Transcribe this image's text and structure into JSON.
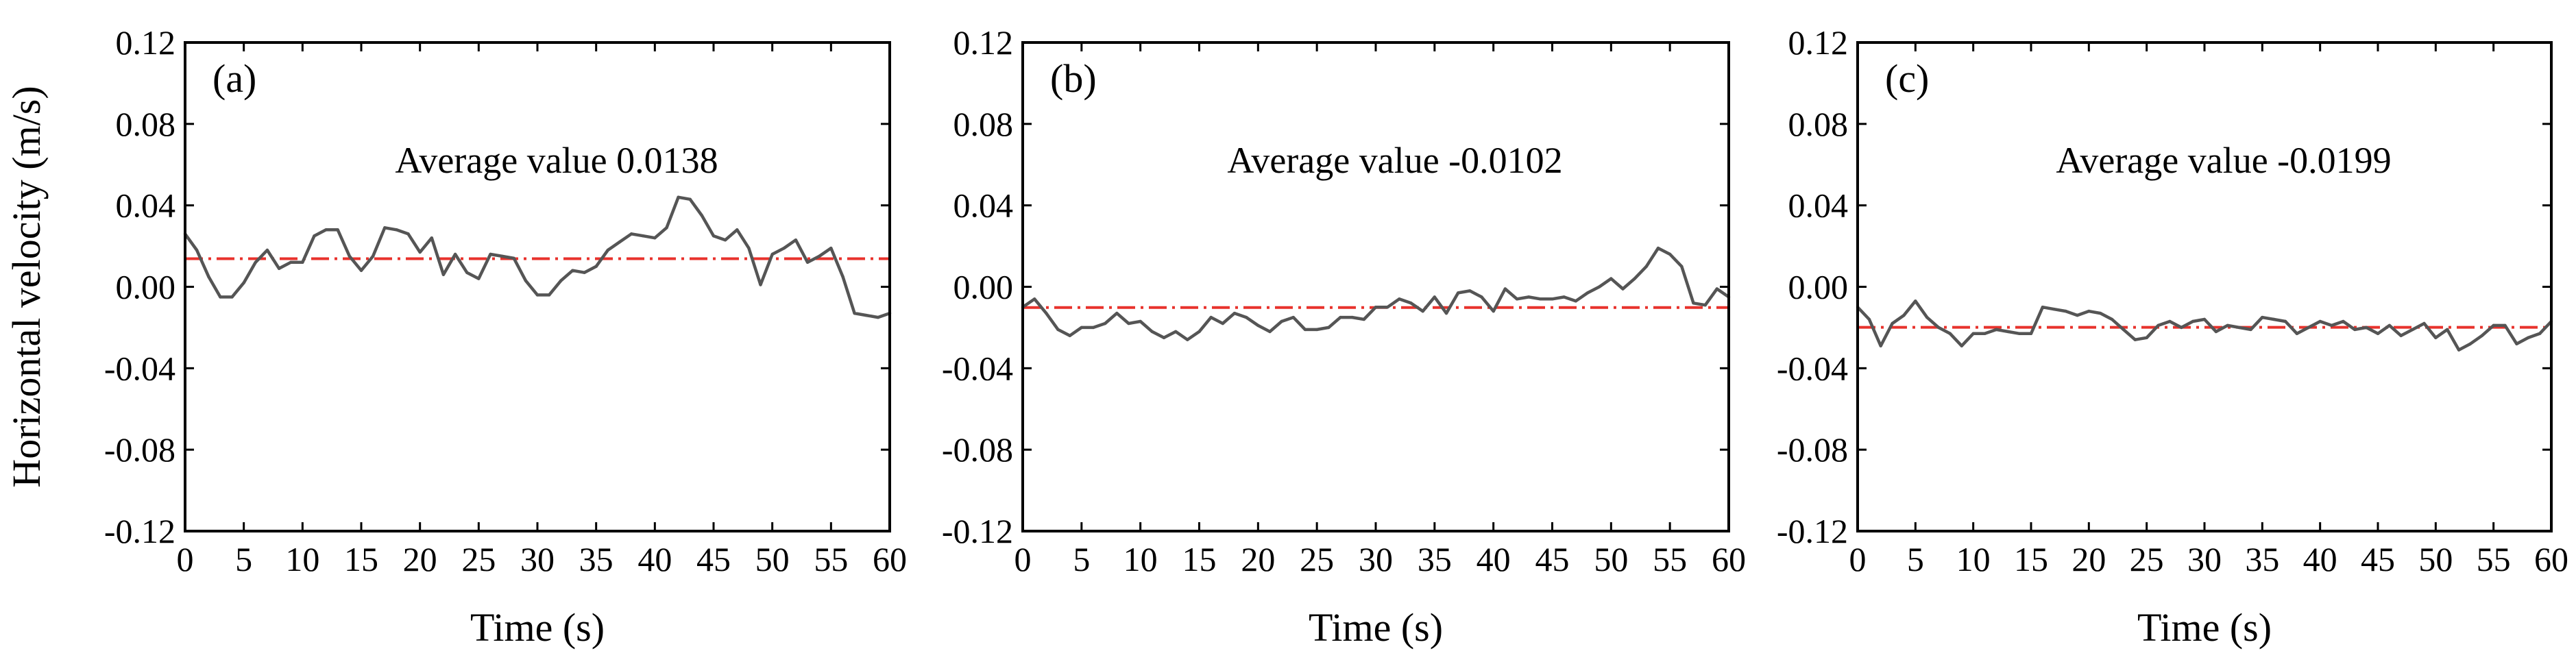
{
  "chart_data": [
    {
      "type": "line",
      "panel_label": "(a)",
      "annotation": "Average value 0.0138",
      "average": 0.0138,
      "xlabel": "Time (s)",
      "ylabel": "Horizontal velocity (m/s)",
      "xlim": [
        0,
        60
      ],
      "ylim": [
        -0.12,
        0.12
      ],
      "xticks": [
        0,
        5,
        10,
        15,
        20,
        25,
        30,
        35,
        40,
        45,
        50,
        55,
        60
      ],
      "yticks": [
        "0.12",
        "0.08",
        "0.04",
        "0.00",
        "-0.04",
        "-0.08",
        "-0.12"
      ],
      "series": [
        {
          "name": "velocity",
          "x": [
            0,
            1,
            2,
            3,
            4,
            5,
            6,
            7,
            8,
            9,
            10,
            11,
            12,
            13,
            14,
            15,
            16,
            17,
            18,
            19,
            20,
            21,
            22,
            23,
            24,
            25,
            26,
            27,
            28,
            29,
            30,
            31,
            32,
            33,
            34,
            35,
            36,
            37,
            38,
            39,
            40,
            41,
            42,
            43,
            44,
            45,
            46,
            47,
            48,
            49,
            50,
            51,
            52,
            53,
            54,
            55,
            56,
            57,
            58,
            59,
            60
          ],
          "values": [
            0.026,
            0.018,
            0.005,
            -0.005,
            -0.005,
            0.002,
            0.012,
            0.018,
            0.009,
            0.012,
            0.012,
            0.025,
            0.028,
            0.028,
            0.015,
            0.008,
            0.015,
            0.029,
            0.028,
            0.026,
            0.017,
            0.024,
            0.006,
            0.016,
            0.007,
            0.004,
            0.016,
            0.015,
            0.014,
            0.003,
            -0.004,
            -0.004,
            0.003,
            0.008,
            0.007,
            0.01,
            0.018,
            0.022,
            0.026,
            0.025,
            0.024,
            0.029,
            0.044,
            0.043,
            0.035,
            0.025,
            0.023,
            0.028,
            0.019,
            0.001,
            0.016,
            0.019,
            0.023,
            0.012,
            0.015,
            0.019,
            0.005,
            -0.013,
            -0.014,
            -0.015,
            -0.013
          ]
        }
      ]
    },
    {
      "type": "line",
      "panel_label": "(b)",
      "annotation": "Average value -0.0102",
      "average": -0.0102,
      "xlabel": "Time (s)",
      "ylabel": "",
      "xlim": [
        0,
        60
      ],
      "ylim": [
        -0.12,
        0.12
      ],
      "xticks": [
        0,
        5,
        10,
        15,
        20,
        25,
        30,
        35,
        40,
        45,
        50,
        55,
        60
      ],
      "yticks": [
        "0.12",
        "0.08",
        "0.04",
        "0.00",
        "-0.04",
        "-0.08",
        "-0.12"
      ],
      "series": [
        {
          "name": "velocity",
          "x": [
            0,
            1,
            2,
            3,
            4,
            5,
            6,
            7,
            8,
            9,
            10,
            11,
            12,
            13,
            14,
            15,
            16,
            17,
            18,
            19,
            20,
            21,
            22,
            23,
            24,
            25,
            26,
            27,
            28,
            29,
            30,
            31,
            32,
            33,
            34,
            35,
            36,
            37,
            38,
            39,
            40,
            41,
            42,
            43,
            44,
            45,
            46,
            47,
            48,
            49,
            50,
            51,
            52,
            53,
            54,
            55,
            56,
            57,
            58,
            59,
            60
          ],
          "values": [
            -0.01,
            -0.006,
            -0.013,
            -0.021,
            -0.024,
            -0.02,
            -0.02,
            -0.018,
            -0.013,
            -0.018,
            -0.017,
            -0.022,
            -0.025,
            -0.022,
            -0.026,
            -0.022,
            -0.015,
            -0.018,
            -0.013,
            -0.015,
            -0.019,
            -0.022,
            -0.017,
            -0.015,
            -0.021,
            -0.021,
            -0.02,
            -0.015,
            -0.015,
            -0.016,
            -0.01,
            -0.01,
            -0.006,
            -0.008,
            -0.012,
            -0.005,
            -0.013,
            -0.003,
            -0.002,
            -0.005,
            -0.012,
            -0.001,
            -0.006,
            -0.005,
            -0.006,
            -0.006,
            -0.005,
            -0.007,
            -0.003,
            0.0,
            0.004,
            -0.001,
            0.004,
            0.01,
            0.019,
            0.016,
            0.01,
            -0.008,
            -0.009,
            -0.001,
            -0.005
          ]
        }
      ]
    },
    {
      "type": "line",
      "panel_label": "(c)",
      "annotation": "Average value -0.0199",
      "average": -0.0199,
      "xlabel": "Time (s)",
      "ylabel": "",
      "xlim": [
        0,
        60
      ],
      "ylim": [
        -0.12,
        0.12
      ],
      "xticks": [
        0,
        5,
        10,
        15,
        20,
        25,
        30,
        35,
        40,
        45,
        50,
        55,
        60
      ],
      "yticks": [
        "0.12",
        "0.08",
        "0.04",
        "0.00",
        "-0.04",
        "-0.08",
        "-0.12"
      ],
      "series": [
        {
          "name": "velocity",
          "x": [
            0,
            1,
            2,
            3,
            4,
            5,
            6,
            7,
            8,
            9,
            10,
            11,
            12,
            13,
            14,
            15,
            16,
            17,
            18,
            19,
            20,
            21,
            22,
            23,
            24,
            25,
            26,
            27,
            28,
            29,
            30,
            31,
            32,
            33,
            34,
            35,
            36,
            37,
            38,
            39,
            40,
            41,
            42,
            43,
            44,
            45,
            46,
            47,
            48,
            49,
            50,
            51,
            52,
            53,
            54,
            55,
            56,
            57,
            58,
            59,
            60
          ],
          "values": [
            -0.01,
            -0.016,
            -0.029,
            -0.018,
            -0.014,
            -0.007,
            -0.015,
            -0.02,
            -0.023,
            -0.029,
            -0.023,
            -0.023,
            -0.021,
            -0.022,
            -0.023,
            -0.023,
            -0.01,
            -0.011,
            -0.012,
            -0.014,
            -0.012,
            -0.013,
            -0.016,
            -0.021,
            -0.026,
            -0.025,
            -0.019,
            -0.017,
            -0.02,
            -0.017,
            -0.016,
            -0.022,
            -0.019,
            -0.02,
            -0.021,
            -0.015,
            -0.016,
            -0.017,
            -0.023,
            -0.02,
            -0.017,
            -0.019,
            -0.017,
            -0.021,
            -0.02,
            -0.023,
            -0.019,
            -0.024,
            -0.021,
            -0.018,
            -0.025,
            -0.021,
            -0.031,
            -0.028,
            -0.024,
            -0.019,
            -0.019,
            -0.028,
            -0.025,
            -0.023,
            -0.017
          ]
        }
      ]
    }
  ]
}
